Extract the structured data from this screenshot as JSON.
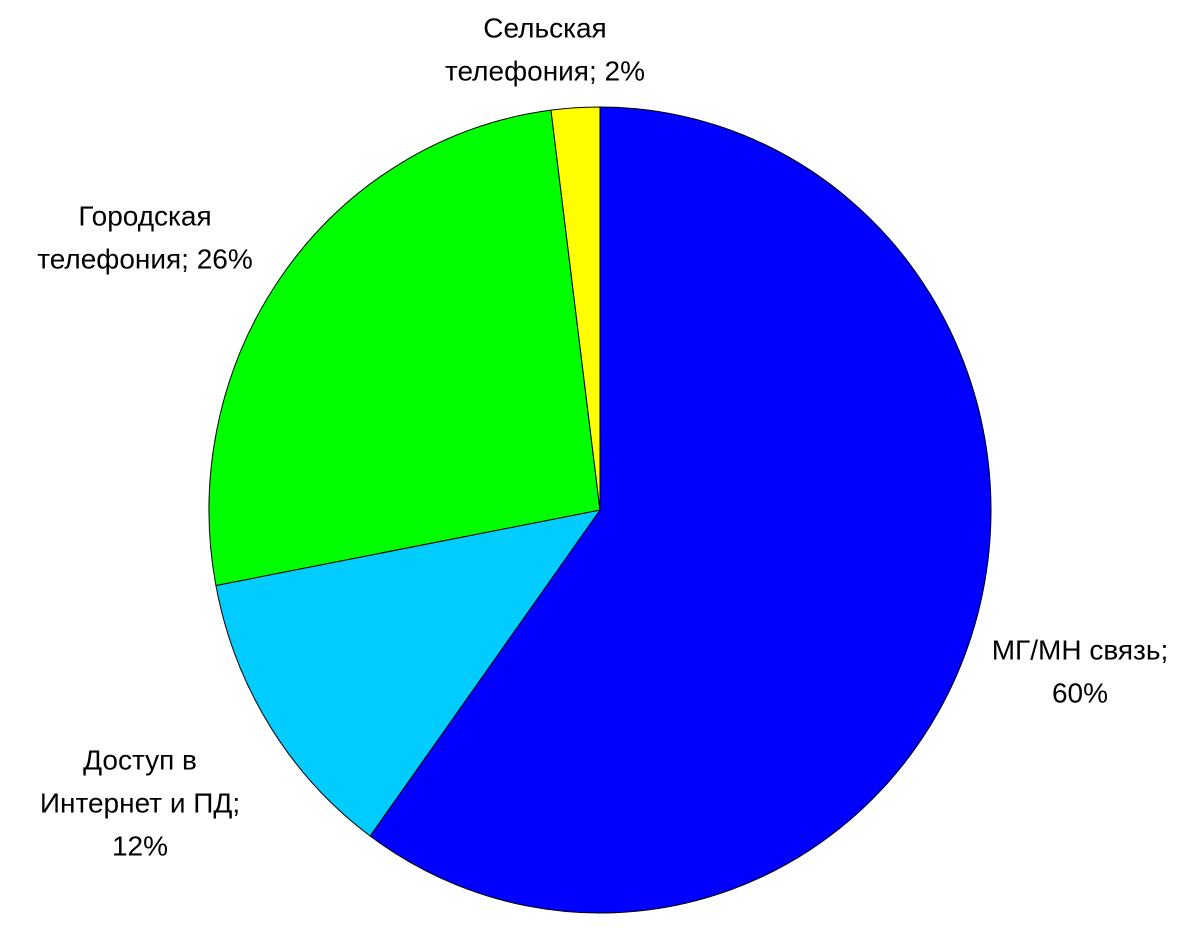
{
  "chart_data": {
    "type": "pie",
    "values": [
      60,
      12,
      26,
      2
    ],
    "value_labels": [
      [
        "МГ/МН связь;",
        "60%"
      ],
      [
        "Доступ в",
        "Интернет и ПД;",
        "12%"
      ],
      [
        "Городская",
        "телефония; 26%"
      ],
      [
        "Сельская",
        "телефония; 2%"
      ]
    ],
    "colors": [
      "#0000ff",
      "#00ccff",
      "#00ff00",
      "#ffff00"
    ]
  }
}
